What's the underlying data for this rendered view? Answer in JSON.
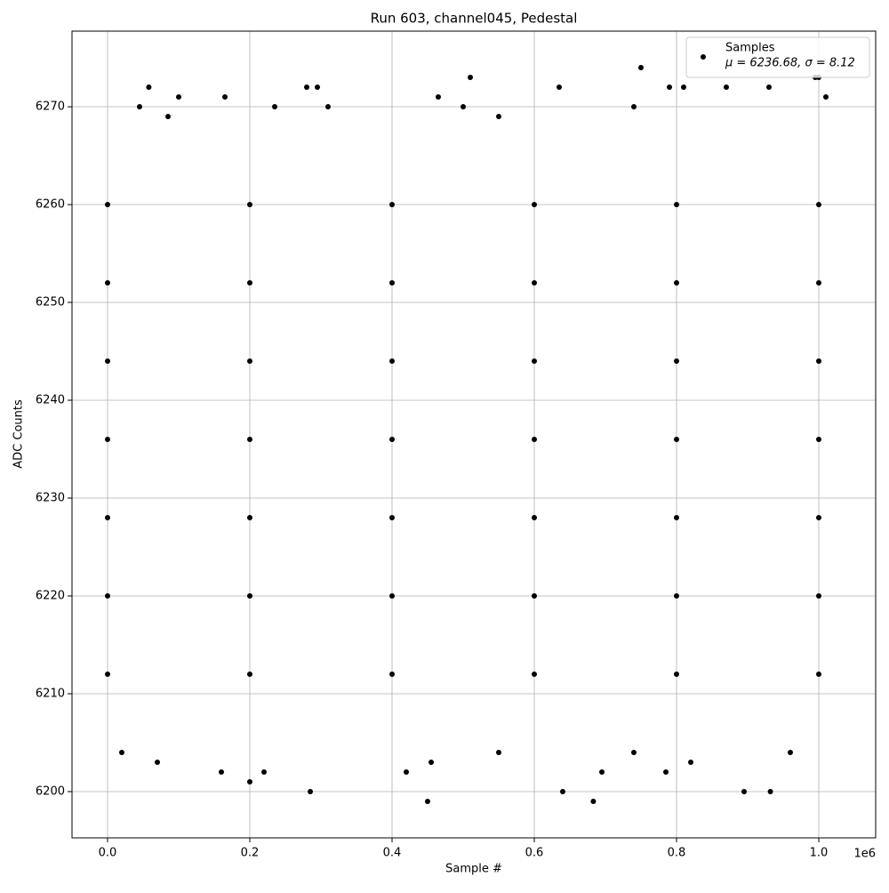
{
  "chart_data": {
    "type": "scatter",
    "title": "Run 603, channel045, Pedestal",
    "x_label": "Sample #",
    "y_label": "ADC Counts",
    "x_offset_label": "1e6",
    "series": [
      {
        "name": "Samples",
        "color": "#000000",
        "x": [
          0,
          200000,
          400000,
          600000,
          800000,
          1000000,
          0,
          200000,
          400000,
          600000,
          800000,
          1000000,
          0,
          200000,
          400000,
          600000,
          800000,
          1000000,
          0,
          200000,
          400000,
          600000,
          800000,
          1000000,
          0,
          200000,
          400000,
          600000,
          800000,
          1000000,
          0,
          200000,
          400000,
          600000,
          800000,
          1000000,
          0,
          200000,
          400000,
          600000,
          800000,
          1000000,
          45000,
          58000,
          70000,
          85000,
          100000,
          160000,
          165000,
          200000,
          220000,
          235000,
          280000,
          285000,
          295000,
          310000,
          450000,
          465000,
          500000,
          510000,
          550000,
          635000,
          640000,
          683000,
          695000,
          740000,
          750000,
          785000,
          790000,
          810000,
          820000,
          870000,
          895000,
          930000,
          932000,
          995000,
          1000000,
          1010000,
          20000,
          455000,
          420000,
          550000,
          960000,
          740000
        ],
        "y": [
          6212,
          6212,
          6212,
          6212,
          6212,
          6212,
          6220,
          6220,
          6220,
          6220,
          6220,
          6220,
          6228,
          6228,
          6228,
          6228,
          6228,
          6228,
          6236,
          6236,
          6236,
          6236,
          6236,
          6236,
          6244,
          6244,
          6244,
          6244,
          6244,
          6244,
          6252,
          6252,
          6252,
          6252,
          6252,
          6252,
          6260,
          6260,
          6260,
          6260,
          6260,
          6260,
          6270,
          6272,
          6203,
          6269,
          6271,
          6202,
          6271,
          6201,
          6202,
          6270,
          6272,
          6200,
          6272,
          6270,
          6199,
          6271,
          6270,
          6273,
          6269,
          6272,
          6200,
          6199,
          6202,
          6270,
          6274,
          6202,
          6272,
          6272,
          6203,
          6272,
          6200,
          6272,
          6200,
          6273,
          6273,
          6271,
          6204,
          6203,
          6202,
          6204,
          6204,
          6204
        ]
      }
    ],
    "legend_note": "μ = 6236.68, σ = 8.12",
    "legend": "upper right",
    "xlim": [
      -50000,
      1080000
    ],
    "ylim": [
      6195.27,
      6277.73
    ],
    "xticks": [
      {
        "value": 0,
        "label": "0.0"
      },
      {
        "value": 200000,
        "label": "0.2"
      },
      {
        "value": 400000,
        "label": "0.4"
      },
      {
        "value": 600000,
        "label": "0.6"
      },
      {
        "value": 800000,
        "label": "0.8"
      },
      {
        "value": 1000000,
        "label": "1.0"
      }
    ],
    "yticks": [
      6200,
      6210,
      6220,
      6230,
      6240,
      6250,
      6260,
      6270
    ],
    "grid": true
  }
}
